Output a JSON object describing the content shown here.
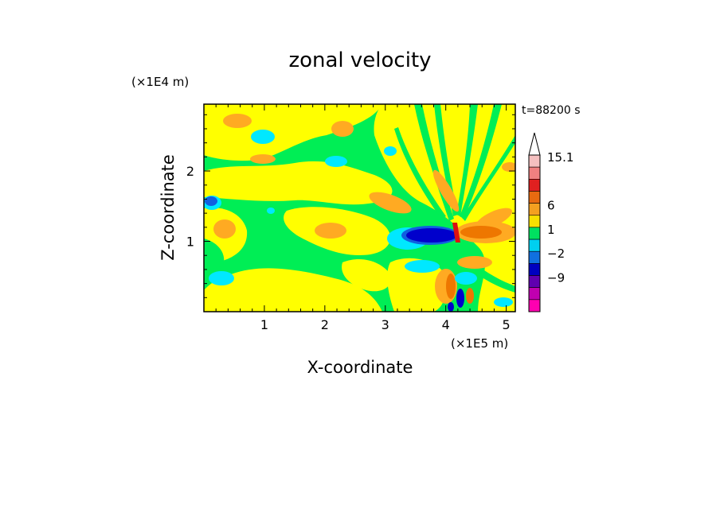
{
  "chart_data": {
    "type": "heatmap",
    "title": "zonal velocity",
    "xlabel": "X-coordinate",
    "ylabel": "Z-coordinate",
    "x_scale_note": "(×1E5 m)",
    "y_scale_note": "(×1E4 m)",
    "time_label": "t=88200 s",
    "xlim": [
      0,
      5.15
    ],
    "ylim": [
      0,
      2.95
    ],
    "x_ticks": [
      "1",
      "2",
      "3",
      "4",
      "5"
    ],
    "y_ticks": [
      "1",
      "2"
    ],
    "colorbar": {
      "labels": [
        "15.1",
        "6",
        "1",
        "−2",
        "−9"
      ],
      "colors": [
        "#f5c0c0",
        "#f08080",
        "#e02020",
        "#e86a10",
        "#f4a020",
        "#f7e000",
        "#00e060",
        "#00d0f0",
        "#1070e0",
        "#0000c0",
        "#6000b0",
        "#c000b0",
        "#ff00b0"
      ]
    },
    "palette": {
      "background": "#00ee55",
      "light_yellow": "#ffff00",
      "orange": "#ffaa22",
      "dark_orange": "#ee7700",
      "cyan": "#00e8ff",
      "blue": "#1060e0",
      "dark_blue": "#0000cc",
      "red": "#dd1111"
    }
  }
}
